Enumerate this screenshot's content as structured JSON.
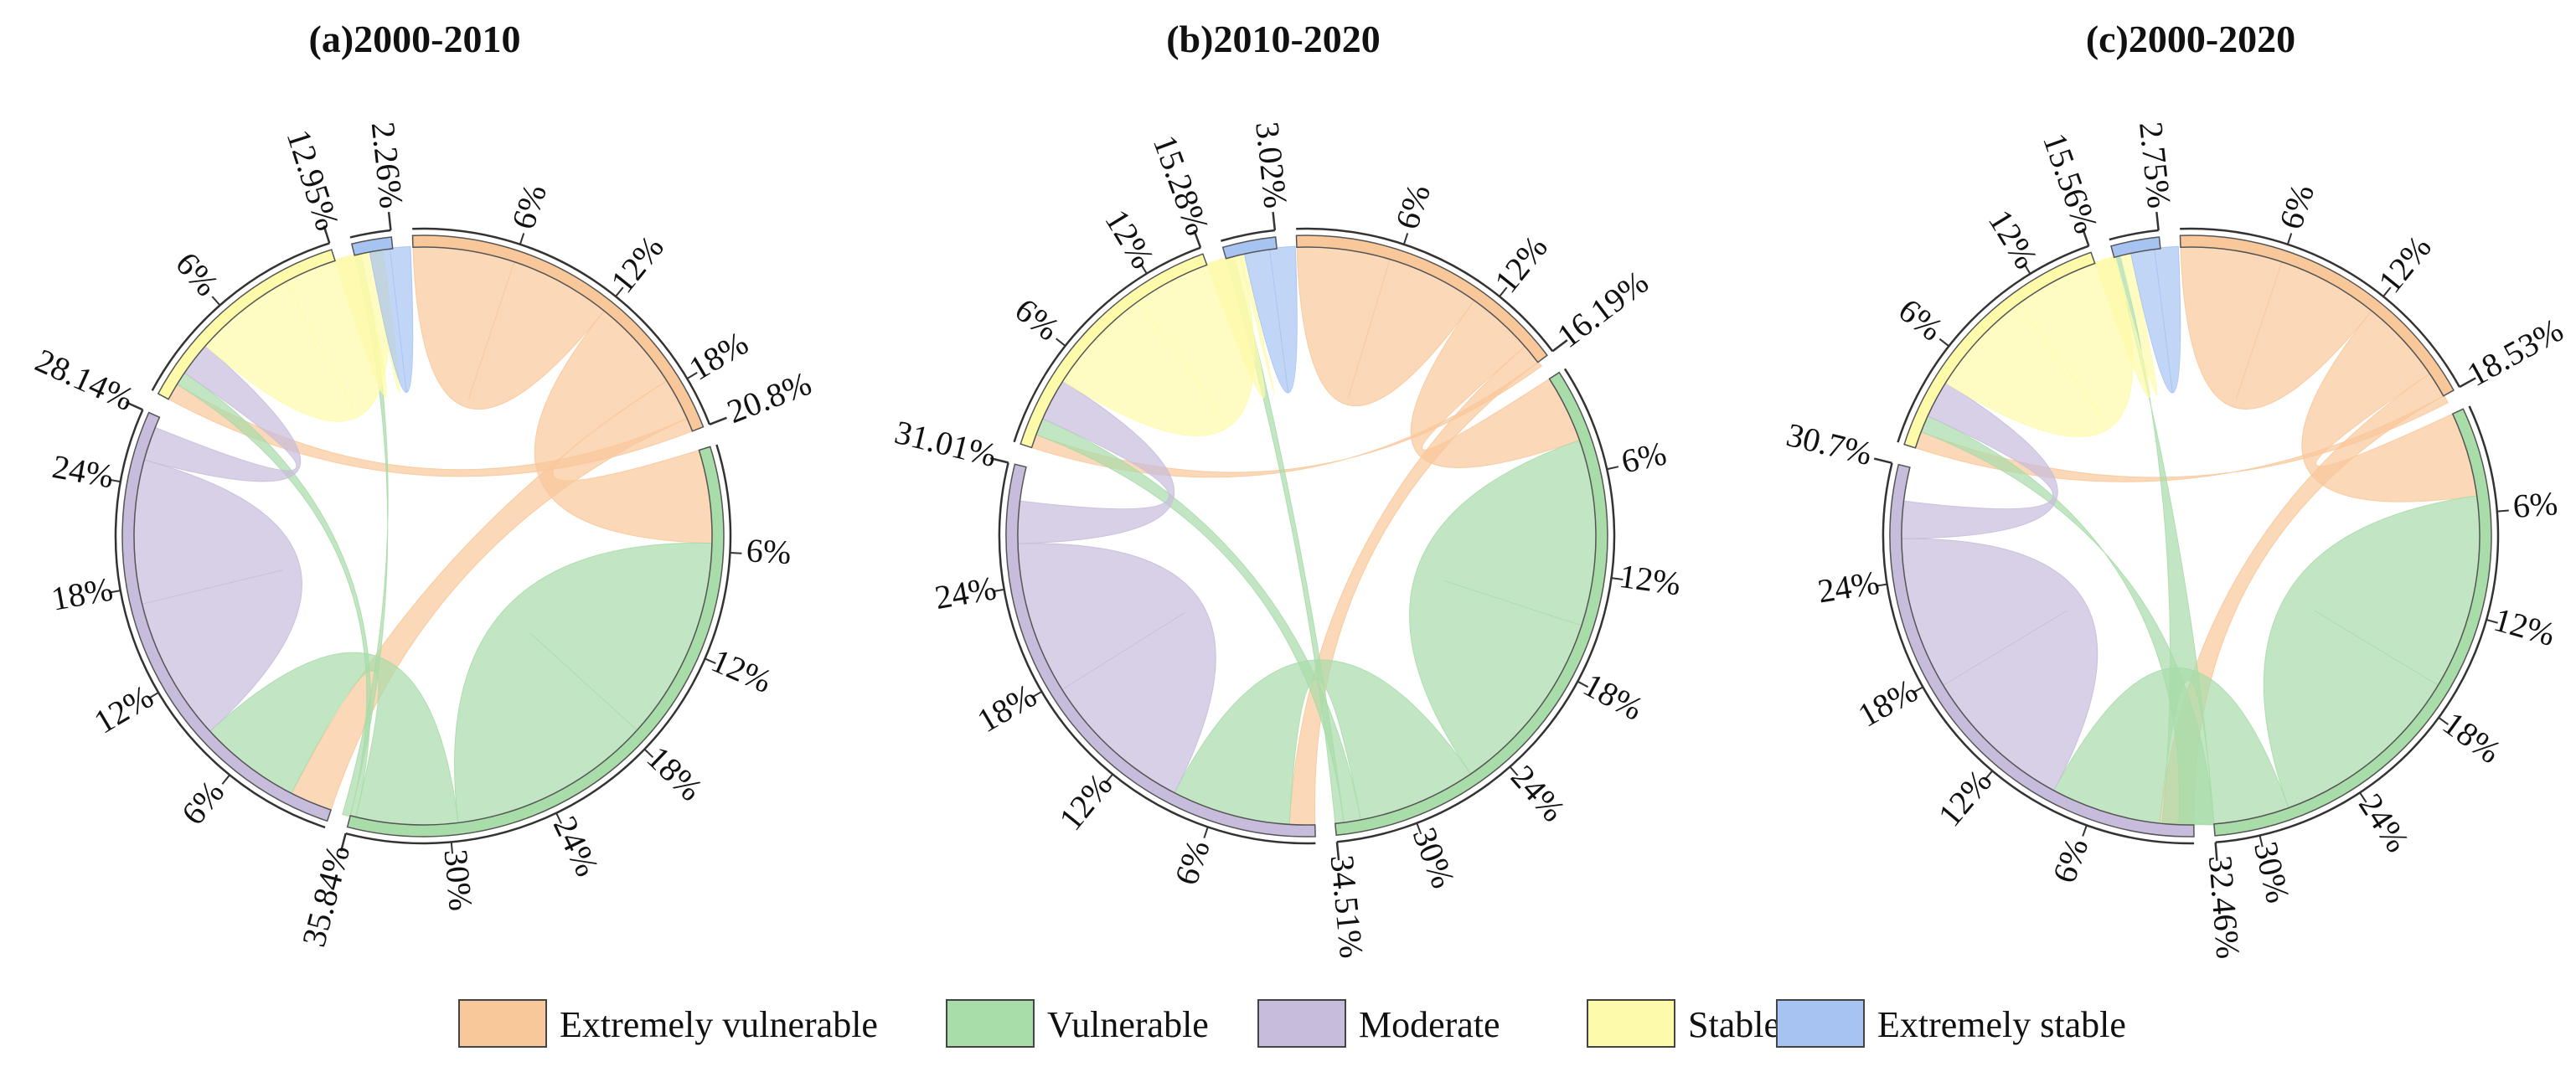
{
  "colors": {
    "Extremely vulnerable": "#f9c89a",
    "Vulnerable": "#a8dca9",
    "Moderate": "#c8bcdc",
    "Stable": "#fdfbaa",
    "Extremely stable": "#a6c3f2"
  },
  "legend": [
    "Extremely vulnerable",
    "Vulnerable",
    "Moderate",
    "Stable",
    "Extremely stable"
  ],
  "chart_data": [
    {
      "type": "chord",
      "title": "(a)2000-2010",
      "categories": [
        "Extremely vulnerable",
        "Vulnerable",
        "Moderate",
        "Stable",
        "Extremely stable"
      ],
      "shares": [
        20.8,
        35.84,
        28.14,
        12.95,
        2.26
      ],
      "share_labels": [
        "20.8%",
        "35.84%",
        "28.14%",
        "12.95%",
        "2.26%"
      ],
      "ticks": [
        [
          "6%",
          "12%",
          "18%"
        ],
        [
          "6%",
          "12%",
          "18%",
          "24%",
          "30%"
        ],
        [
          "6%",
          "12%",
          "18%",
          "24%"
        ],
        [
          "6%"
        ],
        []
      ],
      "flows": [
        [
          "Extremely vulnerable",
          "Extremely vulnerable",
          6.0
        ],
        [
          "Extremely vulnerable",
          "Vulnerable",
          5.5
        ],
        [
          "Extremely vulnerable",
          "Moderate",
          2.5
        ],
        [
          "Extremely vulnerable",
          "Stable",
          1.0
        ],
        [
          "Vulnerable",
          "Vulnerable",
          12.0
        ],
        [
          "Vulnerable",
          "Moderate",
          6.0
        ],
        [
          "Vulnerable",
          "Stable",
          0.8
        ],
        [
          "Vulnerable",
          "Extremely stable",
          0.4
        ],
        [
          "Moderate",
          "Moderate",
          8.5
        ],
        [
          "Moderate",
          "Stable",
          2.0
        ],
        [
          "Stable",
          "Stable",
          6.0
        ],
        [
          "Stable",
          "Extremely stable",
          0.5
        ],
        [
          "Extremely stable",
          "Extremely stable",
          1.2
        ]
      ]
    },
    {
      "type": "chord",
      "title": "(b)2010-2020",
      "categories": [
        "Extremely vulnerable",
        "Vulnerable",
        "Moderate",
        "Stable",
        "Extremely stable"
      ],
      "shares": [
        16.19,
        34.51,
        31.01,
        15.28,
        3.02
      ],
      "share_labels": [
        "16.19%",
        "34.51%",
        "31.01%",
        "15.28%",
        "3.02%"
      ],
      "ticks": [
        [
          "6%",
          "12%"
        ],
        [
          "6%",
          "12%",
          "18%",
          "24%",
          "30%"
        ],
        [
          "6%",
          "12%",
          "18%",
          "24%"
        ],
        [
          "6%",
          "12%"
        ],
        []
      ],
      "flows": [
        [
          "Extremely vulnerable",
          "Extremely vulnerable",
          5.5
        ],
        [
          "Extremely vulnerable",
          "Vulnerable",
          4.0
        ],
        [
          "Extremely vulnerable",
          "Moderate",
          1.5
        ],
        [
          "Extremely vulnerable",
          "Stable",
          0.8
        ],
        [
          "Vulnerable",
          "Vulnerable",
          11.0
        ],
        [
          "Vulnerable",
          "Moderate",
          7.0
        ],
        [
          "Vulnerable",
          "Stable",
          1.0
        ],
        [
          "Vulnerable",
          "Extremely stable",
          0.5
        ],
        [
          "Moderate",
          "Moderate",
          9.0
        ],
        [
          "Moderate",
          "Stable",
          2.5
        ],
        [
          "Stable",
          "Stable",
          6.5
        ],
        [
          "Stable",
          "Extremely stable",
          0.6
        ],
        [
          "Extremely stable",
          "Extremely stable",
          1.5
        ]
      ]
    },
    {
      "type": "chord",
      "title": "(c)2000-2020",
      "categories": [
        "Extremely vulnerable",
        "Vulnerable",
        "Moderate",
        "Stable",
        "Extremely stable"
      ],
      "shares": [
        18.53,
        32.46,
        30.7,
        15.56,
        2.75
      ],
      "share_labels": [
        "18.53%",
        "32.46%",
        "30.7%",
        "15.56%",
        "2.75%"
      ],
      "ticks": [
        [
          "6%",
          "12%"
        ],
        [
          "6%",
          "12%",
          "18%",
          "24%",
          "30%"
        ],
        [
          "6%",
          "12%",
          "18%",
          "24%"
        ],
        [
          "6%",
          "12%"
        ],
        []
      ],
      "flows": [
        [
          "Extremely vulnerable",
          "Extremely vulnerable",
          6.0
        ],
        [
          "Extremely vulnerable",
          "Vulnerable",
          5.0
        ],
        [
          "Extremely vulnerable",
          "Moderate",
          2.0
        ],
        [
          "Extremely vulnerable",
          "Stable",
          1.0
        ],
        [
          "Vulnerable",
          "Vulnerable",
          11.5
        ],
        [
          "Vulnerable",
          "Moderate",
          6.5
        ],
        [
          "Vulnerable",
          "Stable",
          1.0
        ],
        [
          "Vulnerable",
          "Extremely stable",
          0.4
        ],
        [
          "Moderate",
          "Moderate",
          9.0
        ],
        [
          "Moderate",
          "Stable",
          2.2
        ],
        [
          "Stable",
          "Stable",
          6.3
        ],
        [
          "Stable",
          "Extremely stable",
          0.6
        ],
        [
          "Extremely stable",
          "Extremely stable",
          1.4
        ]
      ]
    }
  ]
}
